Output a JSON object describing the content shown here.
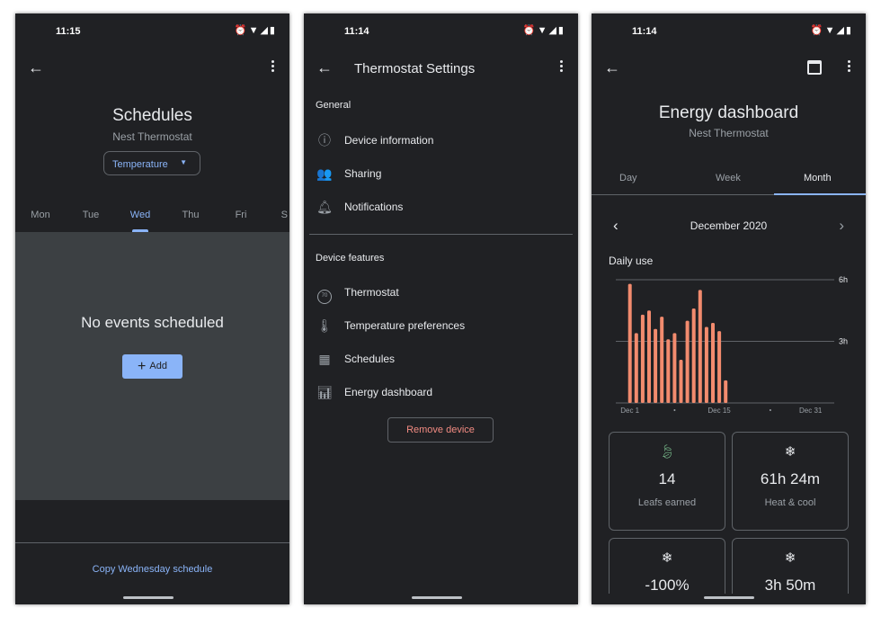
{
  "schedules": {
    "time": "11:15",
    "title": "Schedules",
    "subtitle": "Nest Thermostat",
    "dropdown": "Temperature",
    "days": [
      "Mon",
      "Tue",
      "Wed",
      "Thu",
      "Fri",
      "S"
    ],
    "selected_day": "Wed",
    "empty": "No events scheduled",
    "add": "Add",
    "copy": "Copy Wednesday schedule"
  },
  "settings": {
    "time": "11:14",
    "title": "Thermostat Settings",
    "general": "General",
    "general_items": [
      {
        "label": "Device information",
        "icon": "info-icon"
      },
      {
        "label": "Sharing",
        "icon": "people-icon"
      },
      {
        "label": "Notifications",
        "icon": "bell-icon"
      }
    ],
    "features": "Device features",
    "feature_items": [
      {
        "label": "Thermostat",
        "icon": "thermostat-icon"
      },
      {
        "label": "Temperature preferences",
        "icon": "thermometer-icon"
      },
      {
        "label": "Schedules",
        "icon": "calendar-icon"
      },
      {
        "label": "Energy dashboard",
        "icon": "energy-icon"
      }
    ],
    "remove": "Remove device",
    "thermo_icon_text": "70"
  },
  "energy": {
    "time": "11:14",
    "title": "Energy dashboard",
    "subtitle": "Nest Thermostat",
    "tabs": [
      "Day",
      "Week",
      "Month"
    ],
    "selected_tab": "Month",
    "period": "December 2020",
    "section": "Daily use",
    "cards": [
      {
        "value": "14",
        "label": "Leafs earned",
        "icon": "leaf-icon"
      },
      {
        "value": "61h 24m",
        "label": "Heat & cool",
        "icon": "heat-cool-icon"
      },
      {
        "value": "-100%",
        "label": "",
        "icon": "heat-cool-icon"
      },
      {
        "value": "3h 50m",
        "label": "",
        "icon": "heat-cool-icon"
      }
    ]
  },
  "colors": {
    "bar": "#f28b6e",
    "accent": "#8ab4f8",
    "danger": "#f28b82",
    "leaf": "#81c995"
  },
  "chart_data": {
    "type": "bar",
    "title": "Daily use",
    "x_start": 1,
    "x_end": 31,
    "xticks": [
      "Dec 1",
      "Dec 15",
      "Dec 31"
    ],
    "yticks": [
      "3h",
      "6h"
    ],
    "ylim": [
      0,
      6
    ],
    "unit": "hours",
    "grid": true,
    "categories": [
      "Dec 1",
      "Dec 2",
      "Dec 3",
      "Dec 4",
      "Dec 5",
      "Dec 6",
      "Dec 7",
      "Dec 8",
      "Dec 9",
      "Dec 10",
      "Dec 11",
      "Dec 12",
      "Dec 13",
      "Dec 14",
      "Dec 15",
      "Dec 16"
    ],
    "values": [
      5.8,
      3.4,
      4.3,
      4.5,
      3.6,
      4.2,
      3.1,
      3.4,
      2.1,
      4.0,
      4.6,
      5.5,
      3.7,
      3.9,
      3.5,
      1.1
    ]
  }
}
